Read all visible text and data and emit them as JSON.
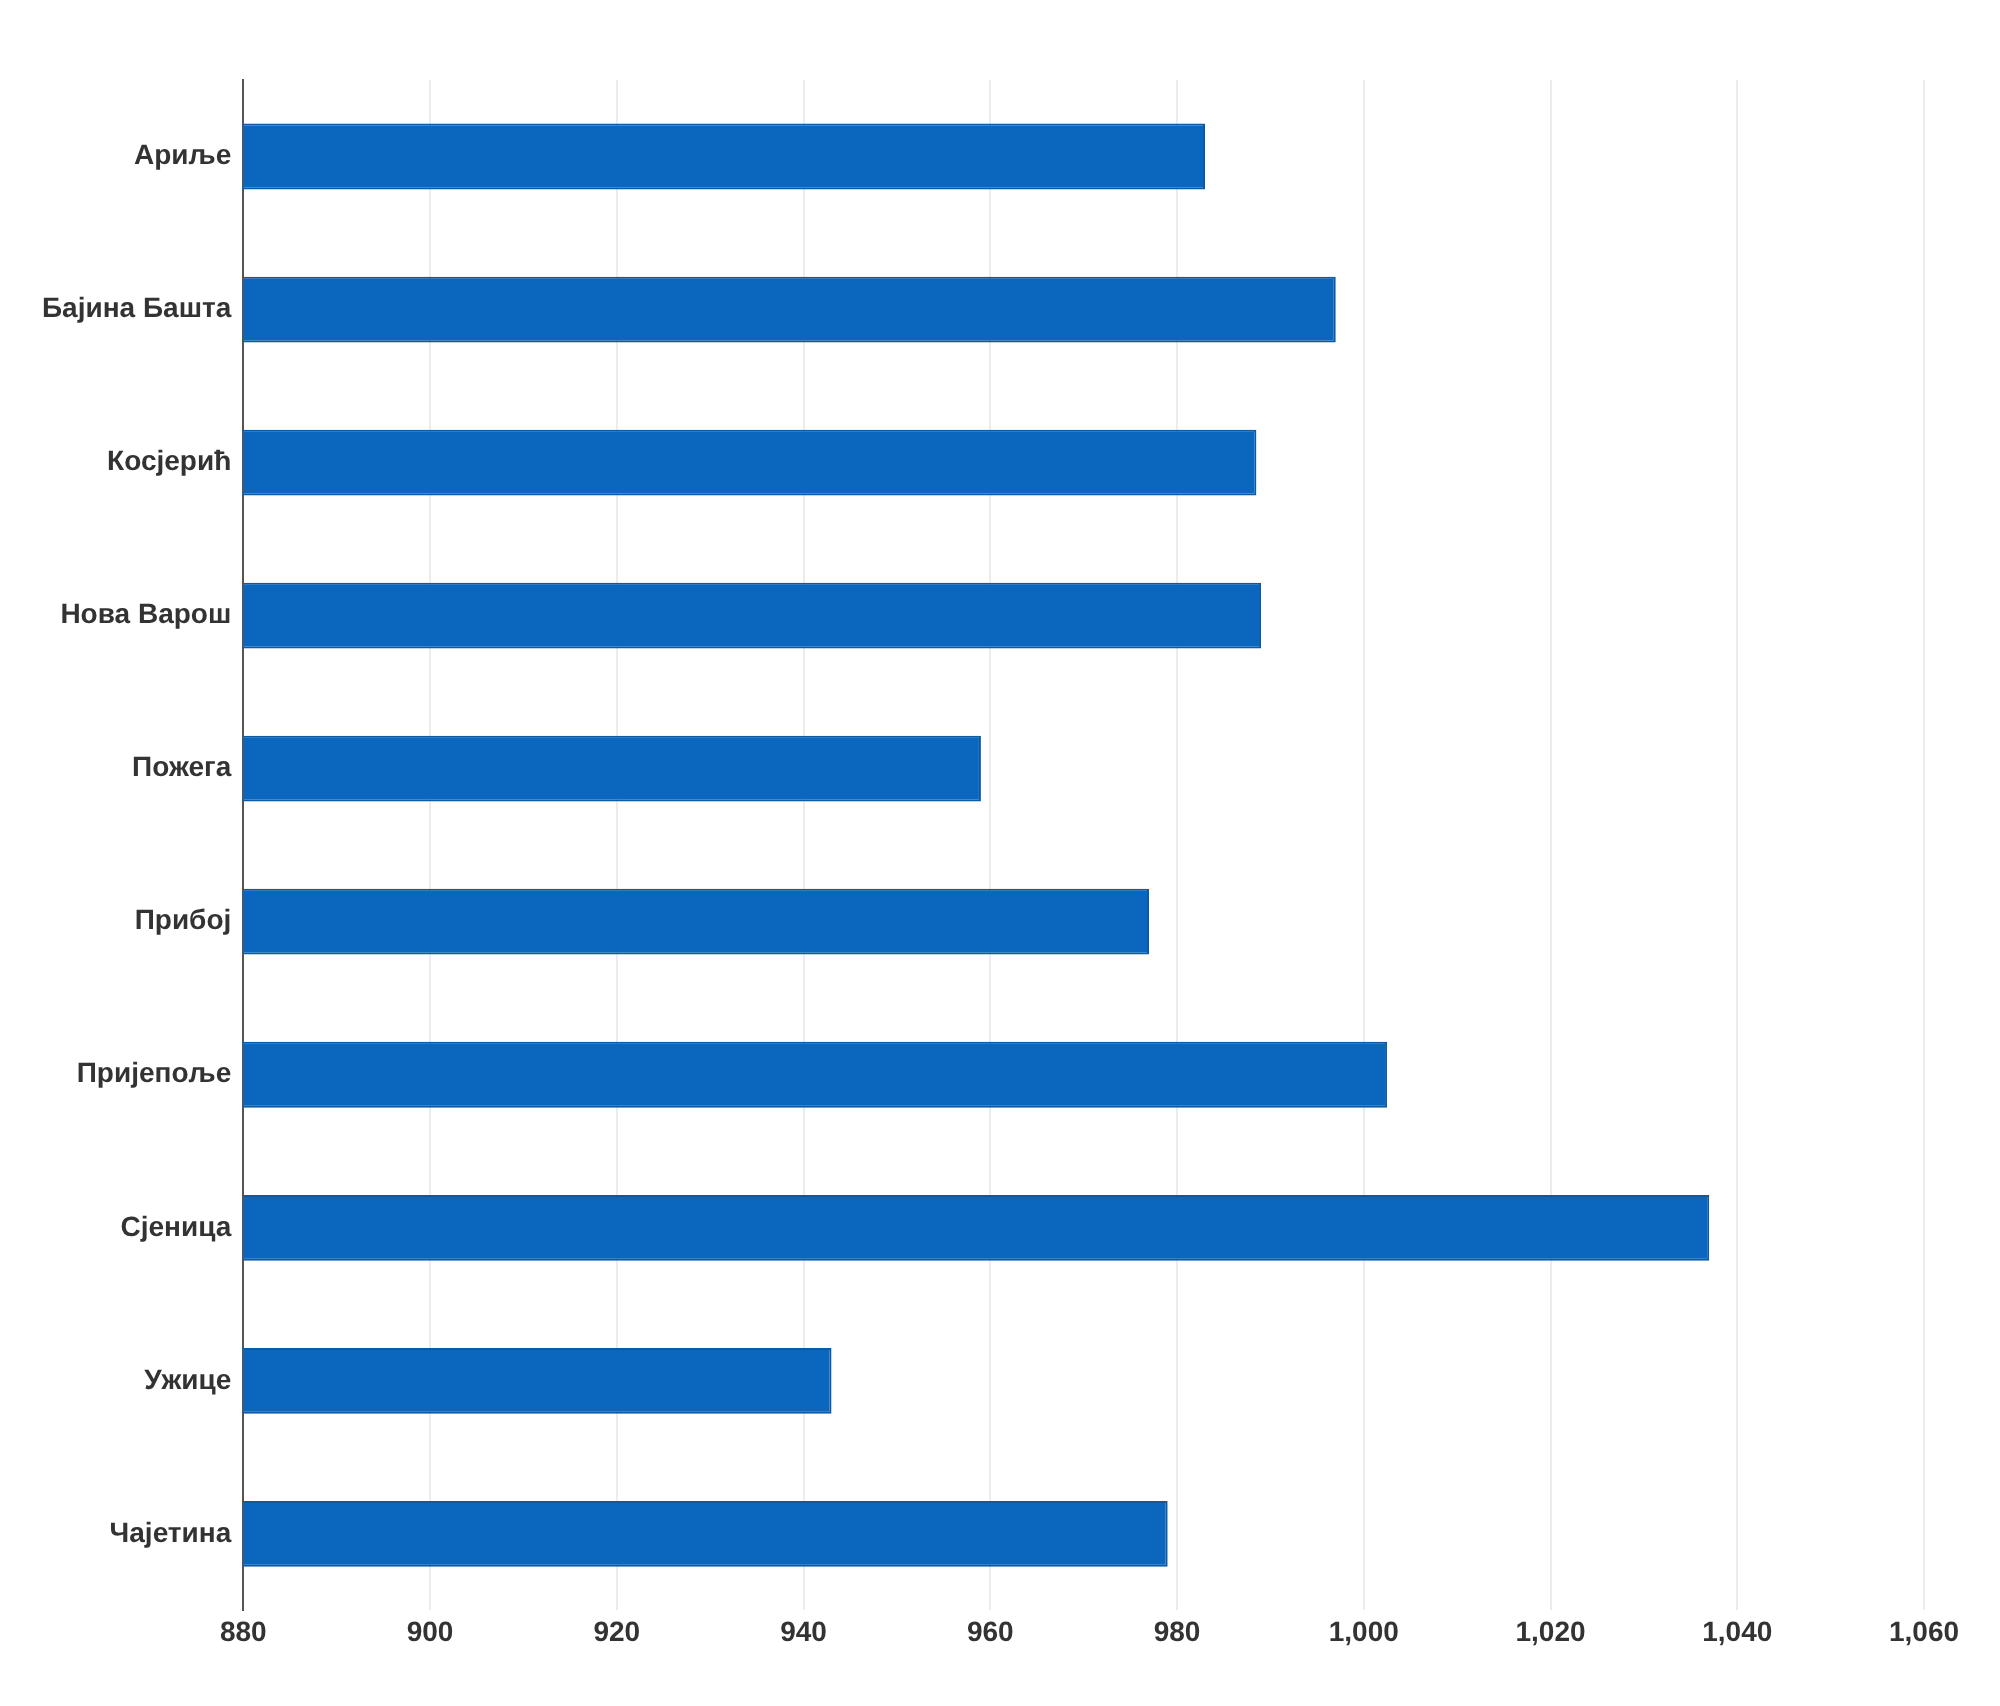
{
  "chart_data": {
    "type": "bar",
    "orientation": "horizontal",
    "categories": [
      "Ариље",
      "Бајина Башта",
      "Косјерић",
      "Нова Варош",
      "Пожега",
      "Прибој",
      "Пријепоље",
      "Сјеница",
      "Ужице",
      "Чајетина"
    ],
    "values": [
      983,
      997,
      988.5,
      989,
      959,
      977,
      1002.5,
      1037,
      943,
      979
    ],
    "color": "#0b66bd",
    "xlim": [
      880,
      1060
    ],
    "xticks": [
      880,
      900,
      920,
      940,
      960,
      980,
      {
        "value": 1000,
        "label": "1,000"
      },
      {
        "value": 1020,
        "label": "1,020"
      },
      {
        "value": 1040,
        "label": "1,040"
      },
      {
        "value": 1060,
        "label": "1,060"
      }
    ],
    "grid": "x",
    "legend": false
  }
}
